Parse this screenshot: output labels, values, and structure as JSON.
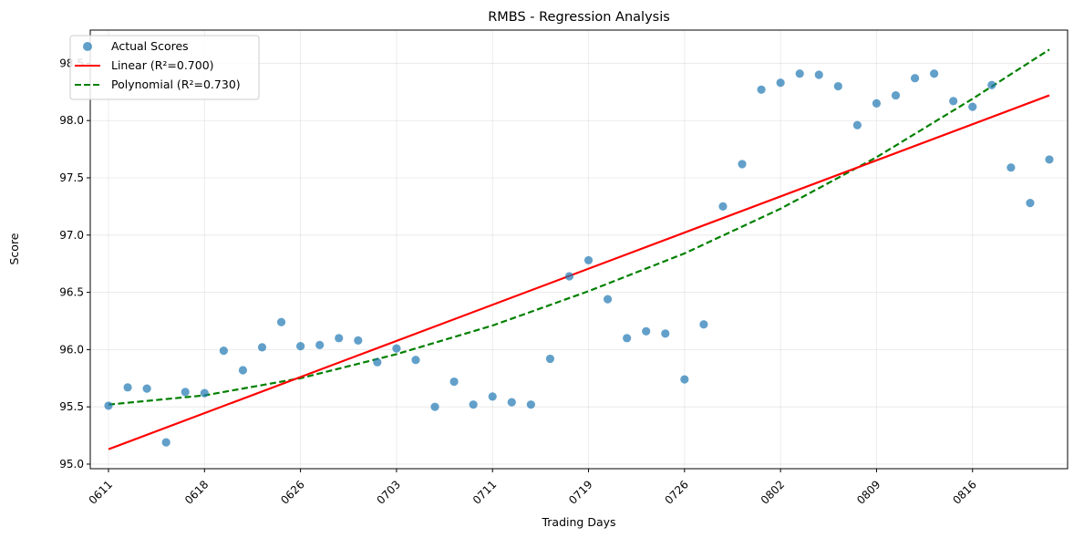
{
  "chart_data": {
    "type": "scatter",
    "title": "RMBS - Regression Analysis",
    "xlabel": "Trading Days",
    "ylabel": "Score",
    "ylim": [
      94.96,
      98.79
    ],
    "xlim": [
      -0.95,
      49.95
    ],
    "yticks": [
      95.0,
      95.5,
      96.0,
      96.5,
      97.0,
      97.5,
      98.0,
      98.5
    ],
    "ytick_labels": [
      "95.0",
      "95.5",
      "96.0",
      "96.5",
      "97.0",
      "97.5",
      "98.0",
      "98.5"
    ],
    "xticks": [
      0,
      5,
      10,
      15,
      20,
      25,
      30,
      35,
      40,
      45
    ],
    "xtick_labels": [
      "0611",
      "0618",
      "0626",
      "0703",
      "0711",
      "0719",
      "0726",
      "0802",
      "0809",
      "0816"
    ],
    "grid": true,
    "legend_position": "top-left",
    "colors": {
      "scatter": "#1f77b4",
      "linear": "#ff0000",
      "polynomial": "#008000"
    },
    "series": [
      {
        "name": "Actual Scores",
        "kind": "scatter",
        "x": [
          0,
          1,
          2,
          3,
          4,
          5,
          6,
          7,
          8,
          9,
          10,
          11,
          12,
          13,
          14,
          15,
          16,
          17,
          18,
          19,
          20,
          21,
          22,
          23,
          24,
          25,
          26,
          27,
          28,
          29,
          30,
          31,
          32,
          33,
          34,
          35,
          36,
          37,
          38,
          39,
          40,
          41,
          42,
          43,
          44,
          45,
          46,
          47,
          48,
          49
        ],
        "y": [
          95.51,
          95.67,
          95.66,
          95.19,
          95.63,
          95.62,
          95.99,
          95.82,
          96.02,
          96.24,
          96.03,
          96.04,
          96.1,
          96.08,
          95.89,
          96.01,
          95.91,
          95.5,
          95.72,
          95.52,
          95.59,
          95.54,
          95.52,
          95.92,
          96.64,
          96.78,
          96.44,
          96.1,
          96.16,
          96.14,
          95.74,
          96.22,
          97.25,
          97.62,
          98.27,
          98.33,
          98.41,
          98.4,
          98.3,
          97.96,
          98.15,
          98.22,
          98.37,
          98.41,
          98.17,
          98.12,
          98.31,
          97.59,
          97.28,
          97.66
        ]
      },
      {
        "name": "Linear (R²=0.700)",
        "kind": "line",
        "style": "solid",
        "x": [
          0,
          49
        ],
        "y": [
          95.13,
          98.22
        ]
      },
      {
        "name": "Polynomial (R²=0.730)",
        "kind": "line",
        "style": "dashed",
        "x": [
          0,
          5,
          10,
          15,
          20,
          25,
          30,
          35,
          40,
          45,
          49
        ],
        "y": [
          95.52,
          95.6,
          95.75,
          95.96,
          96.21,
          96.51,
          96.84,
          97.23,
          97.68,
          98.19,
          98.62
        ]
      }
    ]
  }
}
